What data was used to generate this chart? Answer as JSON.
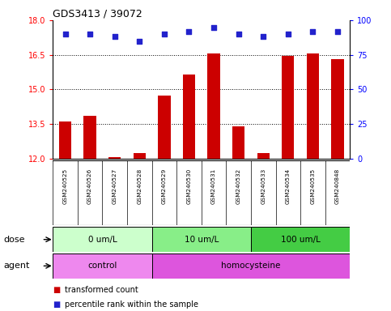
{
  "title": "GDS3413 / 39072",
  "samples": [
    "GSM240525",
    "GSM240526",
    "GSM240527",
    "GSM240528",
    "GSM240529",
    "GSM240530",
    "GSM240531",
    "GSM240532",
    "GSM240533",
    "GSM240534",
    "GSM240535",
    "GSM240848"
  ],
  "bar_values": [
    13.6,
    13.85,
    12.05,
    12.25,
    14.75,
    15.65,
    16.55,
    13.4,
    12.25,
    16.45,
    16.55,
    16.3
  ],
  "percentile_values": [
    90,
    90,
    88,
    85,
    90,
    92,
    95,
    90,
    88,
    90,
    92,
    92
  ],
  "ylim_left": [
    12,
    18
  ],
  "ylim_right": [
    0,
    100
  ],
  "yticks_left": [
    12,
    13.5,
    15,
    16.5,
    18
  ],
  "yticks_right": [
    0,
    25,
    50,
    75,
    100
  ],
  "grid_values": [
    13.5,
    15,
    16.5
  ],
  "bar_color": "#cc0000",
  "percentile_color": "#2222cc",
  "dose_groups": [
    {
      "label": "0 um/L",
      "start": 0,
      "end": 4,
      "color": "#ccffcc"
    },
    {
      "label": "10 um/L",
      "start": 4,
      "end": 8,
      "color": "#88ee88"
    },
    {
      "label": "100 um/L",
      "start": 8,
      "end": 12,
      "color": "#44cc44"
    }
  ],
  "agent_groups": [
    {
      "label": "control",
      "start": 0,
      "end": 4,
      "color": "#ee88ee"
    },
    {
      "label": "homocysteine",
      "start": 4,
      "end": 12,
      "color": "#dd55dd"
    }
  ],
  "dose_label": "dose",
  "agent_label": "agent",
  "legend_bar_label": "transformed count",
  "legend_percentile_label": "percentile rank within the sample",
  "bg_color": "#ffffff",
  "sample_bg_color": "#c8c8c8",
  "bar_bottom": 12,
  "bar_width": 0.5
}
